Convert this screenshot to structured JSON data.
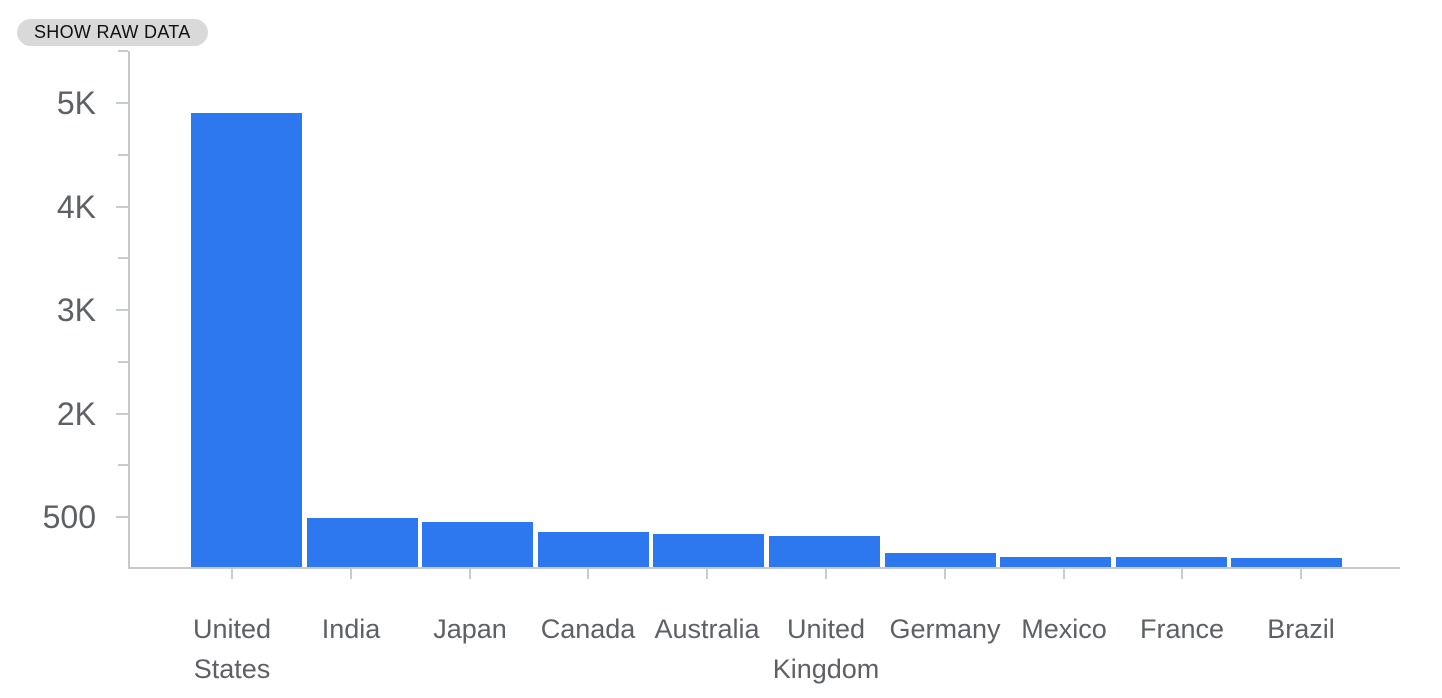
{
  "controls": {
    "show_raw_data_label": "SHOW RAW DATA"
  },
  "chart_data": {
    "type": "bar",
    "title": "",
    "xlabel": "",
    "ylabel": "",
    "categories": [
      "United States",
      "India",
      "Japan",
      "Canada",
      "Australia",
      "United Kingdom",
      "Germany",
      "Mexico",
      "France",
      "Brazil"
    ],
    "values": [
      4880,
      530,
      480,
      380,
      350,
      330,
      150,
      110,
      110,
      100
    ],
    "y_tick_labels": [
      "5K",
      "4K",
      "3K",
      "2K",
      "500"
    ],
    "ylim": [
      0,
      5250
    ],
    "grid": false,
    "legend": false,
    "colors": {
      "bar": "#2d78ee",
      "axis": "#c8c8c8",
      "tick_label": "#5d6065",
      "button_bg": "#d9d9d9",
      "button_text": "#111111"
    }
  }
}
